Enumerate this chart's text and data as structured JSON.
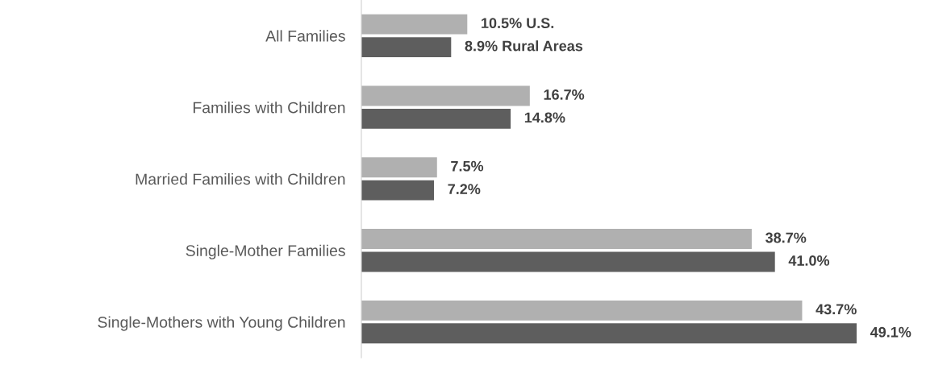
{
  "chart_data": {
    "type": "bar",
    "orientation": "horizontal",
    "categories": [
      "All Families",
      "Families with Children",
      "Married Families with Children",
      "Single-Mother Families",
      "Single-Mothers with Young Children"
    ],
    "series": [
      {
        "color": "#b0b0b0",
        "values": [
          10.5,
          16.7,
          7.5,
          38.7,
          43.7
        ],
        "value_labels": [
          "10.5% U.S.",
          "16.7%",
          "7.5%",
          "38.7%",
          "43.7%"
        ]
      },
      {
        "color": "#5e5e5e",
        "values": [
          8.9,
          14.8,
          7.2,
          41.0,
          49.1
        ],
        "value_labels": [
          "8.9% Rural Areas",
          "14.8%",
          "7.2%",
          "41.0%",
          "49.1%"
        ]
      }
    ],
    "tick_labels": "y",
    "grid": false,
    "legend": false
  }
}
